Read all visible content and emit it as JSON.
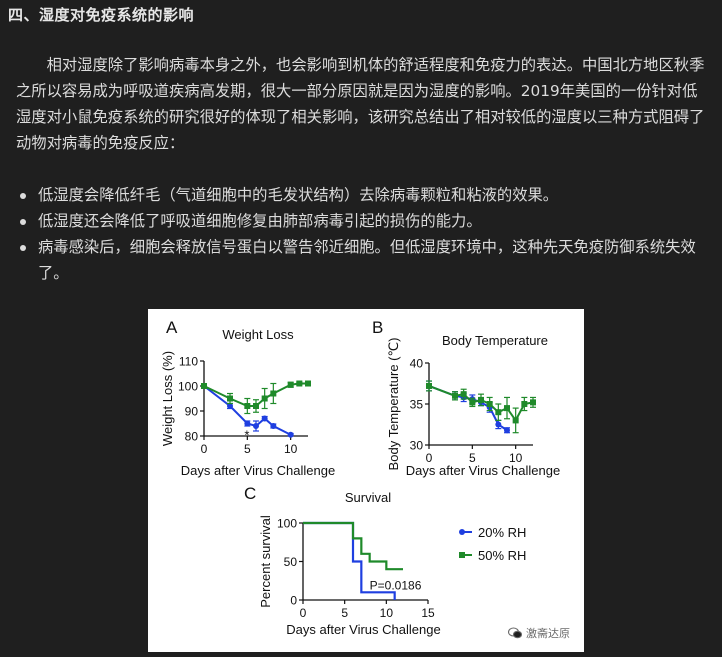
{
  "heading": "四、湿度对免疫系统的影响",
  "paragraph": "相对湿度除了影响病毒本身之外，也会影响到机体的舒适程度和免疫力的表达。中国北方地区秋季之所以容易成为呼吸道疾病高发期，很大一部分原因就是因为湿度的影响。2019年美国的一份针对低湿度对小鼠免疫系统的研究很好的体现了相关影响，该研究总结出了相对较低的湿度以三种方式阻碍了动物对病毒的免疫反应：",
  "bullets": [
    "低湿度会降低纤毛（气道细胞中的毛发状结构）去除病毒颗粒和粘液的效果。",
    "低湿度还会降低了呼吸道细胞修复由肺部病毒引起的损伤的能力。",
    "病毒感染后，细胞会释放信号蛋白以警告邻近细胞。但低湿度环境中，这种先天免疫防御系统失效了。"
  ],
  "watermark": "激斋达原",
  "colors": {
    "blue": "#1f3fe0",
    "green": "#1f8a2a"
  },
  "chart_data": [
    {
      "panel": "A",
      "type": "line",
      "title": "Weight Loss",
      "xlabel": "Days after Virus Challenge",
      "ylabel": "Weight Loss (%)",
      "xlim": [
        0,
        12
      ],
      "ylim": [
        80,
        110
      ],
      "xticks": [
        "0",
        "5",
        "10"
      ],
      "yticks": [
        "80",
        "90",
        "100",
        "110"
      ],
      "annotation": "*",
      "series": [
        {
          "name": "20% RH",
          "color": "blue",
          "x": [
            0,
            3,
            5,
            6,
            7,
            8,
            10
          ],
          "y": [
            100,
            92,
            85,
            84,
            87,
            84,
            80.5
          ],
          "err": [
            0,
            1,
            1,
            2,
            0.8,
            0.8,
            0.5
          ]
        },
        {
          "name": "50% RH",
          "color": "green",
          "x": [
            0,
            3,
            5,
            6,
            7,
            8,
            10,
            11,
            12
          ],
          "y": [
            100,
            95,
            92,
            92,
            95,
            97,
            100.5,
            101,
            101
          ],
          "err": [
            0,
            2,
            3,
            2.5,
            4,
            4,
            1,
            0.5,
            0.5
          ]
        }
      ]
    },
    {
      "panel": "B",
      "type": "line",
      "title": "Body Temperature",
      "xlabel": "Days after Virus Challenge",
      "ylabel": "Body Temperature (℃)",
      "xlim": [
        0,
        12
      ],
      "ylim": [
        30,
        40
      ],
      "xticks": [
        "0",
        "5",
        "10"
      ],
      "yticks": [
        "30",
        "35",
        "40"
      ],
      "series": [
        {
          "name": "20% RH",
          "color": "blue",
          "x": [
            0,
            3,
            4,
            5,
            6,
            7,
            8,
            9
          ],
          "y": [
            37.2,
            36,
            35.8,
            35.6,
            35.2,
            34.6,
            32.5,
            31.8
          ],
          "err": [
            0.6,
            0.5,
            0.5,
            0.5,
            0.4,
            0.6,
            0.5,
            0.3
          ]
        },
        {
          "name": "50% RH",
          "color": "green",
          "x": [
            0,
            3,
            4,
            5,
            6,
            7,
            8,
            9,
            10,
            11,
            12
          ],
          "y": [
            37.2,
            36,
            36.2,
            35.2,
            35.5,
            35,
            34,
            34.5,
            33,
            35,
            35.2
          ],
          "err": [
            0.6,
            0.5,
            0.6,
            0.5,
            0.7,
            0.8,
            1,
            1.3,
            1.5,
            0.8,
            0.6
          ]
        }
      ]
    },
    {
      "panel": "C",
      "type": "line",
      "title": "Survival",
      "xlabel": "Days after Virus Challenge",
      "ylabel": "Percent survival",
      "xlim": [
        0,
        15
      ],
      "ylim": [
        0,
        100
      ],
      "xticks": [
        "0",
        "5",
        "10",
        "15"
      ],
      "yticks": [
        "0",
        "50",
        "100"
      ],
      "annotation": "P=0.0186",
      "legend": [
        "20% RH",
        "50% RH"
      ],
      "series": [
        {
          "name": "20% RH",
          "color": "blue",
          "step": [
            [
              0,
              100
            ],
            [
              6,
              100
            ],
            [
              6,
              50
            ],
            [
              7,
              50
            ],
            [
              7,
              10
            ],
            [
              11,
              10
            ],
            [
              11,
              0
            ]
          ]
        },
        {
          "name": "50% RH",
          "color": "green",
          "step": [
            [
              0,
              100
            ],
            [
              6,
              100
            ],
            [
              6,
              80
            ],
            [
              7,
              80
            ],
            [
              7,
              60
            ],
            [
              8,
              60
            ],
            [
              8,
              50
            ],
            [
              10,
              50
            ],
            [
              10,
              40
            ],
            [
              12,
              40
            ]
          ]
        }
      ]
    }
  ]
}
